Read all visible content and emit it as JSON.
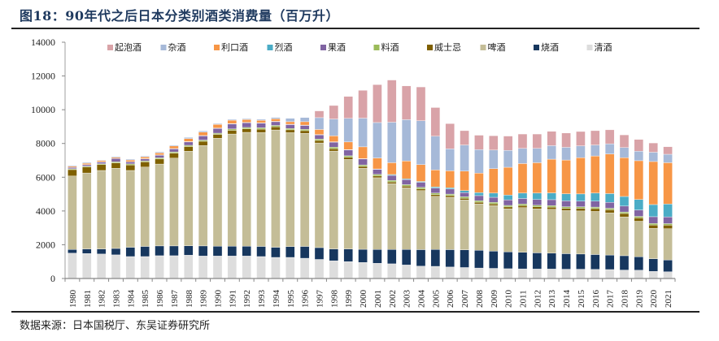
{
  "title": "图18：90年代之后日本分类别酒类消费量（百万升）",
  "source": "数据来源：日本国税厅、东吴证券研究所",
  "chart_data": {
    "type": "bar",
    "stacked": true,
    "title": "90年代之后日本分类别酒类消费量（百万升）",
    "xlabel": "",
    "ylabel": "",
    "ylim": [
      0,
      14000
    ],
    "yticks": [
      0,
      2000,
      4000,
      6000,
      8000,
      10000,
      12000,
      14000
    ],
    "grid": false,
    "legend_position": "top",
    "categories": [
      "1980",
      "1981",
      "1982",
      "1983",
      "1984",
      "1985",
      "1986",
      "1987",
      "1988",
      "1989",
      "1990",
      "1991",
      "1992",
      "1993",
      "1994",
      "1995",
      "1996",
      "1997",
      "1998",
      "1999",
      "2000",
      "2001",
      "2002",
      "2003",
      "2004",
      "2005",
      "2006",
      "2007",
      "2008",
      "2009",
      "2010",
      "2011",
      "2012",
      "2013",
      "2014",
      "2015",
      "2016",
      "2017",
      "2018",
      "2019",
      "2020",
      "2021"
    ],
    "series": [
      {
        "name": "清酒",
        "color": "#dddddd",
        "values": [
          1500,
          1480,
          1450,
          1400,
          1300,
          1300,
          1350,
          1350,
          1380,
          1330,
          1330,
          1330,
          1330,
          1300,
          1250,
          1250,
          1200,
          1130,
          1050,
          1000,
          950,
          900,
          870,
          800,
          730,
          720,
          680,
          650,
          620,
          600,
          580,
          570,
          560,
          560,
          550,
          550,
          540,
          530,
          500,
          490,
          420,
          400
        ]
      },
      {
        "name": "烧酒",
        "color": "#17375e",
        "values": [
          220,
          270,
          300,
          380,
          550,
          600,
          580,
          580,
          560,
          600,
          580,
          580,
          580,
          600,
          600,
          640,
          700,
          700,
          700,
          750,
          780,
          820,
          850,
          920,
          980,
          1000,
          1030,
          1050,
          1050,
          1020,
          1000,
          980,
          960,
          940,
          920,
          900,
          880,
          860,
          850,
          800,
          750,
          700
        ]
      },
      {
        "name": "啤酒",
        "color": "#c4bd97",
        "values": [
          4350,
          4500,
          4650,
          4750,
          4550,
          4700,
          4850,
          5200,
          5600,
          5950,
          6400,
          6650,
          6750,
          6750,
          6950,
          6750,
          6700,
          6200,
          5800,
          5300,
          4800,
          4250,
          3900,
          3650,
          3500,
          3150,
          3100,
          2950,
          2750,
          2700,
          2550,
          2650,
          2600,
          2600,
          2550,
          2550,
          2550,
          2500,
          2300,
          2100,
          1800,
          1850
        ]
      },
      {
        "name": "威士忌",
        "color": "#7f6000",
        "values": [
          380,
          350,
          350,
          320,
          330,
          310,
          300,
          300,
          280,
          250,
          230,
          220,
          210,
          200,
          190,
          170,
          160,
          150,
          140,
          130,
          110,
          110,
          100,
          100,
          100,
          100,
          100,
          100,
          100,
          100,
          110,
          120,
          130,
          130,
          140,
          160,
          170,
          180,
          200,
          200,
          200,
          210
        ]
      },
      {
        "name": "料酒",
        "color": "#9bbb59",
        "values": [
          50,
          50,
          50,
          60,
          60,
          60,
          70,
          70,
          70,
          70,
          70,
          80,
          80,
          80,
          80,
          80,
          80,
          80,
          90,
          90,
          90,
          90,
          90,
          90,
          90,
          90,
          90,
          90,
          90,
          90,
          90,
          90,
          90,
          90,
          90,
          90,
          90,
          90,
          90,
          90,
          90,
          90
        ]
      },
      {
        "name": "果酒",
        "color": "#8064a2",
        "values": [
          80,
          90,
          100,
          200,
          120,
          120,
          150,
          180,
          200,
          250,
          280,
          300,
          280,
          270,
          220,
          230,
          230,
          250,
          300,
          350,
          350,
          300,
          300,
          300,
          300,
          300,
          300,
          250,
          300,
          300,
          330,
          330,
          340,
          350,
          350,
          330,
          350,
          350,
          350,
          380,
          400,
          400
        ]
      },
      {
        "name": "烈酒",
        "color": "#4bacc6",
        "values": [
          10,
          10,
          10,
          10,
          10,
          10,
          20,
          20,
          20,
          20,
          20,
          20,
          20,
          20,
          20,
          20,
          20,
          20,
          20,
          20,
          20,
          20,
          50,
          50,
          50,
          70,
          80,
          120,
          180,
          250,
          280,
          320,
          380,
          400,
          420,
          430,
          480,
          520,
          570,
          620,
          720,
          760
        ]
      },
      {
        "name": "利口酒",
        "color": "#f79646",
        "values": [
          60,
          80,
          80,
          60,
          100,
          100,
          120,
          150,
          180,
          200,
          220,
          200,
          170,
          150,
          150,
          150,
          200,
          300,
          350,
          450,
          700,
          650,
          700,
          1050,
          1000,
          1000,
          1000,
          1150,
          1150,
          1450,
          1650,
          1750,
          1800,
          2000,
          2000,
          2150,
          2200,
          2350,
          2300,
          2300,
          2550,
          2450
        ]
      },
      {
        "name": "杂酒",
        "color": "#a6b9d8",
        "values": [
          50,
          50,
          30,
          50,
          50,
          50,
          60,
          50,
          70,
          70,
          50,
          50,
          50,
          60,
          80,
          200,
          250,
          700,
          1000,
          1400,
          1700,
          2100,
          2400,
          2450,
          2600,
          2000,
          1300,
          1550,
          1400,
          1100,
          1000,
          900,
          850,
          800,
          750,
          700,
          650,
          600,
          600,
          560,
          550,
          500
        ]
      },
      {
        "name": "起泡酒",
        "color": "#d9a3a8",
        "values": [
          0,
          0,
          0,
          0,
          0,
          0,
          0,
          0,
          0,
          0,
          0,
          0,
          0,
          0,
          0,
          0,
          0,
          400,
          800,
          1300,
          1650,
          2250,
          2500,
          2000,
          2000,
          1700,
          1500,
          850,
          850,
          850,
          850,
          850,
          850,
          850,
          850,
          850,
          850,
          830,
          750,
          700,
          550,
          450
        ]
      }
    ]
  }
}
